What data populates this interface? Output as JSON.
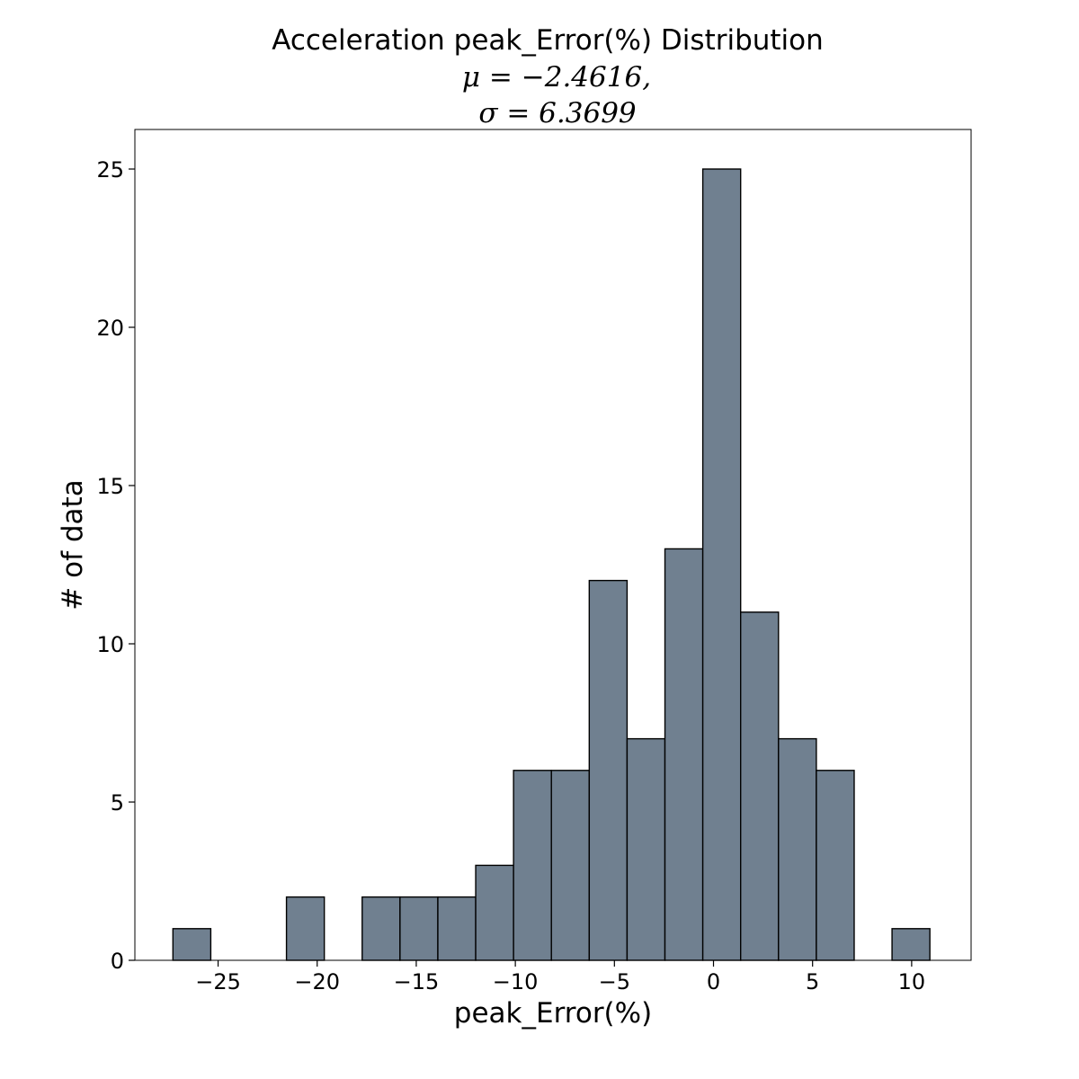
{
  "chart_data": {
    "type": "bar",
    "subtype": "histogram",
    "title": "Acceleration peak_Error(%) Distribution",
    "title_line2": "μ = −2.4616,",
    "title_line3": "σ = 6.3699",
    "xlabel": "peak_Error(%)",
    "ylabel": "# of data",
    "xlim": [
      -29.2,
      13.0
    ],
    "ylim": [
      0,
      26.25
    ],
    "xticks": [
      -25,
      -20,
      -15,
      -10,
      -5,
      0,
      5,
      10
    ],
    "xtick_labels": [
      "−25",
      "−20",
      "−15",
      "−10",
      "−5",
      "0",
      "5",
      "10"
    ],
    "yticks": [
      0,
      5,
      10,
      15,
      20,
      25
    ],
    "ytick_labels": [
      "0",
      "5",
      "10",
      "15",
      "20",
      "25"
    ],
    "bin_edges": [
      -27.28,
      -25.37,
      -23.46,
      -21.55,
      -19.64,
      -17.73,
      -15.82,
      -13.91,
      -12.0,
      -10.09,
      -8.18,
      -6.27,
      -4.36,
      -2.45,
      -0.54,
      1.37,
      3.28,
      5.19,
      7.1,
      9.01,
      10.92
    ],
    "counts": [
      1,
      0,
      0,
      2,
      0,
      2,
      2,
      2,
      3,
      6,
      6,
      12,
      7,
      13,
      25,
      11,
      7,
      6,
      0,
      1
    ],
    "bar_color": "#708090",
    "edge_color": "#000000",
    "grid": false,
    "legend": false
  }
}
